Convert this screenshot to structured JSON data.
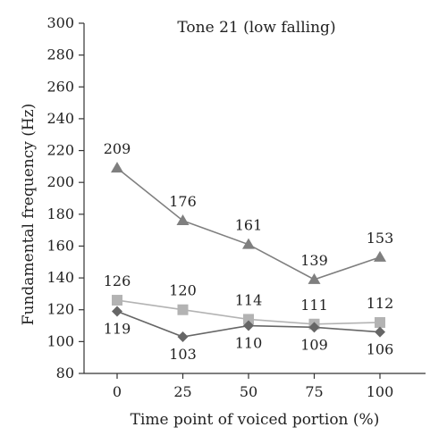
{
  "chart_data": {
    "type": "line",
    "title": "Tone 21 (low falling)",
    "xlabel": "Time point of voiced portion (%)",
    "ylabel": "Fundamental frequency (Hz)",
    "x": [
      0,
      25,
      50,
      75,
      100
    ],
    "x_tick_labels": [
      "0",
      "25",
      "50",
      "75",
      "100"
    ],
    "ylim": [
      80,
      300
    ],
    "y_ticks": [
      80,
      100,
      120,
      140,
      160,
      180,
      200,
      220,
      240,
      260,
      280,
      300
    ],
    "y_tick_labels": [
      "80",
      "100",
      "120",
      "140",
      "160",
      "180",
      "200",
      "220",
      "240",
      "260",
      "280",
      "300"
    ],
    "grid": false,
    "legend": "none",
    "series": [
      {
        "marker": "triangle",
        "color": "#7f7f7f",
        "label_position": "above",
        "values": [
          209,
          176,
          161,
          139,
          153
        ],
        "labels": [
          "209",
          "176",
          "161",
          "139",
          "153"
        ]
      },
      {
        "marker": "square",
        "color": "#b3b3b3",
        "label_position": "above",
        "values": [
          126,
          120,
          114,
          111,
          112
        ],
        "labels": [
          "126",
          "120",
          "114",
          "111",
          "112"
        ]
      },
      {
        "marker": "diamond",
        "color": "#666666",
        "label_position": "below",
        "values": [
          119,
          103,
          110,
          109,
          106
        ],
        "labels": [
          "119",
          "103",
          "110",
          "109",
          "106"
        ]
      }
    ]
  }
}
